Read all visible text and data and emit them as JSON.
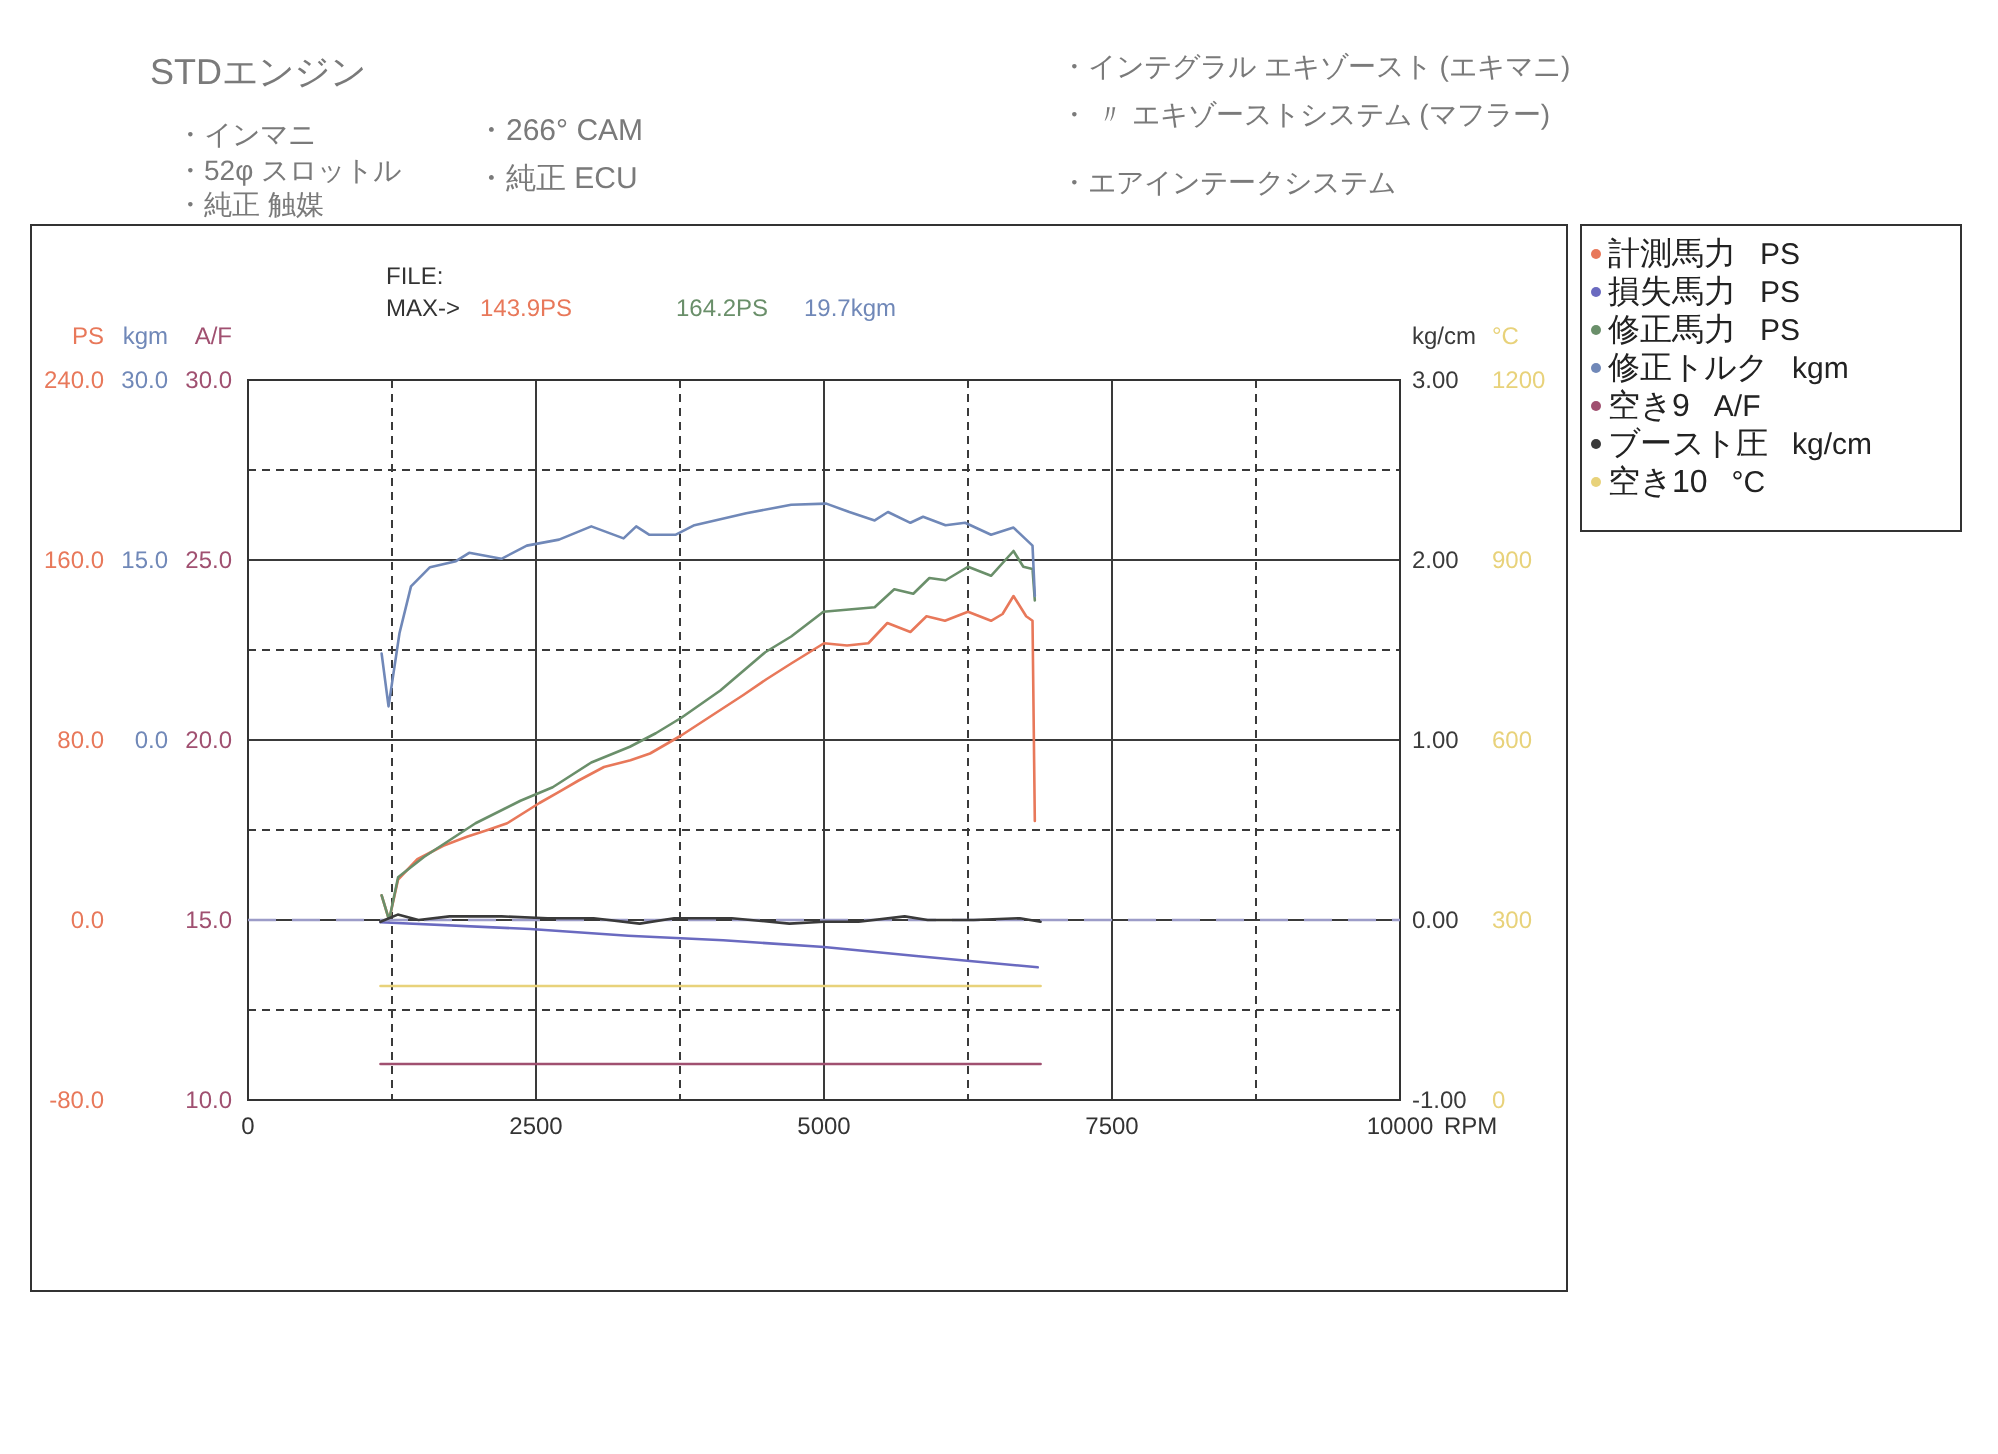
{
  "chart_data": [
    {
      "type": "line",
      "annotations": [
        "FILE:",
        "MAX->",
        "143.9PS",
        "164.2PS",
        "19.7kgm",
        "STDエンジン",
        "・インマニ",
        "・52φ スロットル",
        "・純正 触媒",
        "・266° CAM",
        "・純正 ECU",
        "・インテグラル エキゾースト (エキマニ)",
        "・ 〃 エキゾーストシステム (マフラー)",
        "・エアインテークシステム"
      ],
      "xlabel": "RPM",
      "ylabel": "PS",
      "y2label": "kgm",
      "y3label": "A/F",
      "xlim": [
        0,
        10000
      ],
      "xticks": [
        0,
        {
          "value": 1250,
          "label": null
        },
        2500,
        {
          "value": 3750,
          "label": null
        },
        5000,
        {
          "value": 6250,
          "label": null
        },
        7500,
        {
          "value": 8750,
          "label": null
        },
        10000
      ],
      "ylim": [
        -80,
        240
      ],
      "yticks": [
        {
          "value": -80,
          "label": "-80.0"
        },
        {
          "value": -40,
          "label": null
        },
        {
          "value": 0,
          "label": "0.0"
        },
        {
          "value": 40,
          "label": null
        },
        {
          "value": 80,
          "label": "80.0"
        },
        {
          "value": 120,
          "label": null
        },
        {
          "value": 160,
          "label": "160.0"
        },
        {
          "value": 200,
          "label": null
        },
        {
          "value": 240,
          "label": "240.0"
        }
      ],
      "y2lim": [
        -30,
        30
      ],
      "y2ticks": [
        {
          "value": 0,
          "label": "0.0"
        },
        {
          "value": 15,
          "label": "15.0"
        },
        {
          "value": 30,
          "label": "30.0"
        }
      ],
      "y3lim": [
        10,
        30
      ],
      "y3ticks": [
        {
          "value": 10,
          "label": "10.0"
        },
        {
          "value": 15,
          "label": "15.0"
        },
        {
          "value": 20,
          "label": "20.0"
        },
        {
          "value": 25,
          "label": "25.0"
        },
        {
          "value": 30,
          "label": "30.0"
        }
      ],
      "grid": true,
      "legend": "top right",
      "series": [
        {
          "name": "計測馬力",
          "color": "#e8785a",
          "x": [
            1160,
            1225,
            1303,
            1470,
            1695,
            1900,
            2080,
            2250,
            2530,
            2700,
            2870,
            3090,
            3320,
            3490,
            3760,
            4090,
            4300,
            4500,
            4715,
            5000,
            5200,
            5385,
            5550,
            5750,
            5890,
            6050,
            6250,
            6450,
            6550,
            6645,
            6755,
            6810,
            6830
          ],
          "values": [
            11,
            0,
            18,
            27,
            33,
            37,
            40,
            43,
            52,
            57,
            62,
            68,
            71,
            74,
            82,
            93,
            100,
            107,
            114,
            123,
            122,
            123,
            132,
            128,
            135,
            133,
            137,
            133,
            136,
            144,
            135,
            133,
            44
          ]
        },
        {
          "name": "損失馬力",
          "color": "#6a6ac0",
          "x": [
            1150,
            2450,
            3300,
            4125,
            5000,
            5800,
            6855
          ],
          "values": [
            -1,
            -4,
            -7,
            -9,
            -12,
            -16,
            -21
          ]
        },
        {
          "name": "修正馬力",
          "color": "#6a8f6a",
          "x": [
            1160,
            1225,
            1303,
            1527,
            1975,
            2365,
            2645,
            2980,
            3315,
            3540,
            3765,
            4100,
            4490,
            4715,
            4995,
            5440,
            5610,
            5775,
            5915,
            6055,
            6250,
            6450,
            6645,
            6730,
            6810,
            6830
          ],
          "values": [
            11,
            0,
            19,
            28,
            43,
            53,
            59,
            70,
            77,
            83,
            90,
            102,
            119,
            126,
            137,
            139,
            147,
            145,
            152,
            151,
            157,
            153,
            164,
            157,
            156,
            142
          ]
        },
        {
          "name": "修正トルク",
          "color": "#7088b8",
          "axis": "y2",
          "x": [
            1160,
            1220,
            1315,
            1415,
            1580,
            1805,
            1920,
            2200,
            2420,
            2700,
            2980,
            3260,
            3370,
            3485,
            3710,
            3875,
            4325,
            4715,
            5020,
            5220,
            5440,
            5555,
            5750,
            5860,
            6055,
            6225,
            6450,
            6645,
            6755,
            6810,
            6830
          ],
          "values": [
            7.2,
            2.8,
            8.9,
            12.8,
            14.4,
            14.9,
            15.6,
            15.1,
            16.2,
            16.7,
            17.8,
            16.8,
            17.8,
            17.1,
            17.1,
            17.9,
            18.9,
            19.6,
            19.7,
            19.0,
            18.3,
            19.0,
            18.1,
            18.6,
            17.9,
            18.1,
            17.1,
            17.7,
            16.7,
            16.2,
            12
          ]
        },
        {
          "name": "空き9",
          "color": "#a05070",
          "axis": "y3",
          "x": [
            1150,
            6880
          ],
          "values": [
            11,
            11
          ]
        }
      ]
    },
    {
      "type": "line",
      "xlim": [
        0,
        10000
      ],
      "ylabel": "kg/cm",
      "ylim": [
        -1,
        3
      ],
      "yticks": [
        {
          "value": -1,
          "label": "-1.00"
        },
        {
          "value": 0,
          "label": "0.00"
        },
        {
          "value": 1,
          "label": "1.00"
        },
        {
          "value": 2,
          "label": "2.00"
        },
        {
          "value": 3,
          "label": "3.00"
        }
      ],
      "tick_labels": "y",
      "legend": "top right",
      "ref_lines": [
        {
          "axis": "y",
          "value": 0,
          "color": "#9c9cc8",
          "line_style": "dashed"
        }
      ],
      "series": [
        {
          "name": "ブースト圧",
          "color": "#3a3a3a",
          "x": [
            1150,
            1300,
            1480,
            1750,
            2200,
            2600,
            3000,
            3400,
            3700,
            4200,
            4700,
            5000,
            5300,
            5700,
            5900,
            6300,
            6700,
            6880
          ],
          "values": [
            -0.01,
            0.03,
            0.0,
            0.02,
            0.02,
            0.01,
            0.01,
            -0.02,
            0.01,
            0.01,
            -0.02,
            -0.01,
            -0.01,
            0.02,
            0.0,
            0.0,
            0.01,
            -0.01
          ]
        }
      ]
    },
    {
      "type": "line",
      "xlim": [
        0,
        10000
      ],
      "ylabel": "°C",
      "ylim": [
        0,
        1200
      ],
      "yticks": [
        0,
        300,
        600,
        900,
        1200
      ],
      "tick_labels": "y",
      "legend": "top right",
      "series": [
        {
          "name": "空き10",
          "color": "#e8d27a",
          "x": [
            1150,
            6880
          ],
          "values": [
            190,
            190
          ]
        }
      ]
    }
  ]
}
